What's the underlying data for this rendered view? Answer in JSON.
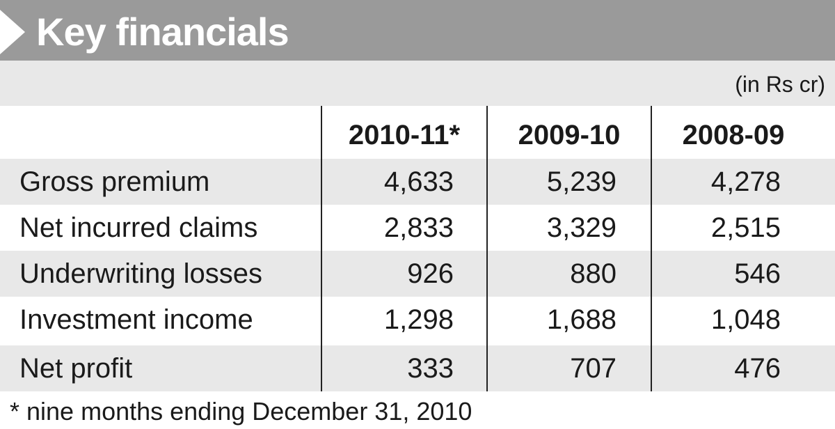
{
  "header": {
    "title": "Key financials"
  },
  "unit_note": "(in Rs cr)",
  "footnote": "* nine months ending December 31, 2010",
  "chart_data": {
    "type": "table",
    "title": "Key financials",
    "unit": "(in Rs cr)",
    "columns": [
      "2010-11*",
      "2009-10",
      "2008-09"
    ],
    "rows": [
      {
        "label": "Gross premium",
        "values": [
          "4,633",
          "5,239",
          "4,278"
        ]
      },
      {
        "label": "Net incurred claims",
        "values": [
          "2,833",
          "3,329",
          "2,515"
        ]
      },
      {
        "label": "Underwriting losses",
        "values": [
          "926",
          "880",
          "546"
        ]
      },
      {
        "label": "Investment income",
        "values": [
          "1,298",
          "1,688",
          "1,048"
        ]
      },
      {
        "label": "Net profit",
        "values": [
          "333",
          "707",
          "476"
        ]
      }
    ],
    "footnote": "* nine months ending December 31, 2010"
  }
}
